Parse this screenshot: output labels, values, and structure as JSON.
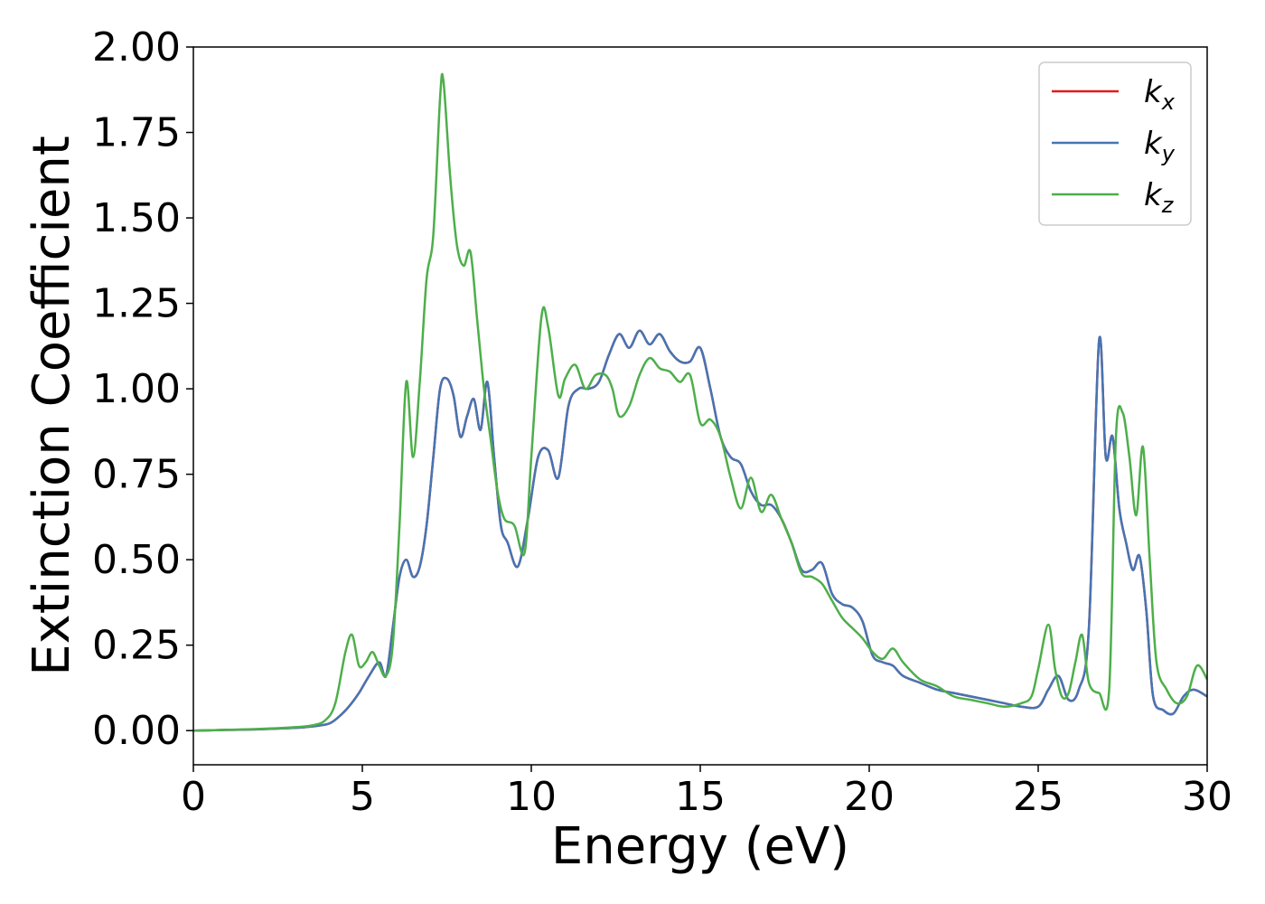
{
  "chart_data": {
    "type": "line",
    "title": "",
    "xlabel": "Energy (eV)",
    "ylabel": "Extinction Coefficient",
    "xlim": [
      0,
      30
    ],
    "ylim": [
      -0.1,
      2.0
    ],
    "xticks": [
      "0",
      "5",
      "10",
      "15",
      "20",
      "25",
      "30"
    ],
    "yticks": [
      "0.00",
      "0.25",
      "0.50",
      "0.75",
      "1.00",
      "1.25",
      "1.50",
      "1.75",
      "2.00"
    ],
    "grid": false,
    "legend_position": "top-right",
    "series": [
      {
        "name": "k_x",
        "legend_base": "k",
        "legend_sub": "x",
        "color": "#e41a1c",
        "x": [
          0,
          1,
          2,
          3,
          3.5,
          4,
          4.3,
          4.6,
          4.9,
          5.2,
          5.5,
          5.7,
          5.9,
          6.1,
          6.3,
          6.5,
          6.7,
          6.9,
          7.1,
          7.3,
          7.5,
          7.7,
          7.9,
          8.1,
          8.3,
          8.5,
          8.7,
          8.9,
          9.1,
          9.3,
          9.6,
          9.9,
          10.2,
          10.5,
          10.8,
          11.1,
          11.4,
          11.7,
          12,
          12.3,
          12.6,
          12.9,
          13.2,
          13.5,
          13.8,
          14.1,
          14.4,
          14.7,
          15,
          15.3,
          15.6,
          15.9,
          16.2,
          16.5,
          16.8,
          17.1,
          17.4,
          17.7,
          18,
          18.3,
          18.6,
          18.9,
          19.2,
          19.5,
          19.8,
          20.1,
          20.4,
          20.7,
          21,
          21.5,
          22,
          22.5,
          23,
          23.5,
          24,
          24.5,
          25,
          25.3,
          25.6,
          25.9,
          26.2,
          26.5,
          26.8,
          27,
          27.2,
          27.4,
          27.6,
          27.8,
          28,
          28.2,
          28.4,
          28.7,
          29,
          29.3,
          29.6,
          30
        ],
        "y": [
          0,
          0.002,
          0.004,
          0.008,
          0.012,
          0.02,
          0.04,
          0.07,
          0.11,
          0.16,
          0.2,
          0.16,
          0.3,
          0.45,
          0.5,
          0.45,
          0.48,
          0.6,
          0.8,
          1.0,
          1.03,
          0.98,
          0.86,
          0.92,
          0.97,
          0.88,
          1.02,
          0.8,
          0.6,
          0.55,
          0.48,
          0.62,
          0.8,
          0.82,
          0.74,
          0.95,
          1.0,
          1.0,
          1.02,
          1.1,
          1.16,
          1.12,
          1.17,
          1.13,
          1.16,
          1.11,
          1.08,
          1.08,
          1.12,
          1.0,
          0.86,
          0.8,
          0.78,
          0.7,
          0.66,
          0.66,
          0.62,
          0.55,
          0.47,
          0.47,
          0.49,
          0.4,
          0.37,
          0.36,
          0.32,
          0.22,
          0.2,
          0.19,
          0.16,
          0.14,
          0.12,
          0.11,
          0.1,
          0.09,
          0.08,
          0.07,
          0.07,
          0.12,
          0.16,
          0.09,
          0.12,
          0.3,
          1.14,
          0.8,
          0.86,
          0.65,
          0.55,
          0.47,
          0.51,
          0.35,
          0.1,
          0.06,
          0.05,
          0.1,
          0.12,
          0.1
        ]
      },
      {
        "name": "k_y",
        "legend_base": "k",
        "legend_sub": "y",
        "color": "#4575b4",
        "x": [
          0,
          1,
          2,
          3,
          3.5,
          4,
          4.3,
          4.6,
          4.9,
          5.2,
          5.5,
          5.7,
          5.9,
          6.1,
          6.3,
          6.5,
          6.7,
          6.9,
          7.1,
          7.3,
          7.5,
          7.7,
          7.9,
          8.1,
          8.3,
          8.5,
          8.7,
          8.9,
          9.1,
          9.3,
          9.6,
          9.9,
          10.2,
          10.5,
          10.8,
          11.1,
          11.4,
          11.7,
          12,
          12.3,
          12.6,
          12.9,
          13.2,
          13.5,
          13.8,
          14.1,
          14.4,
          14.7,
          15,
          15.3,
          15.6,
          15.9,
          16.2,
          16.5,
          16.8,
          17.1,
          17.4,
          17.7,
          18,
          18.3,
          18.6,
          18.9,
          19.2,
          19.5,
          19.8,
          20.1,
          20.4,
          20.7,
          21,
          21.5,
          22,
          22.5,
          23,
          23.5,
          24,
          24.5,
          25,
          25.3,
          25.6,
          25.9,
          26.2,
          26.5,
          26.8,
          27,
          27.2,
          27.4,
          27.6,
          27.8,
          28,
          28.2,
          28.4,
          28.7,
          29,
          29.3,
          29.6,
          30
        ],
        "y": [
          0,
          0.002,
          0.004,
          0.008,
          0.012,
          0.02,
          0.04,
          0.07,
          0.11,
          0.16,
          0.2,
          0.16,
          0.3,
          0.45,
          0.5,
          0.45,
          0.48,
          0.6,
          0.8,
          1.0,
          1.03,
          0.98,
          0.86,
          0.92,
          0.97,
          0.88,
          1.02,
          0.8,
          0.6,
          0.55,
          0.48,
          0.62,
          0.8,
          0.82,
          0.74,
          0.95,
          1.0,
          1.0,
          1.02,
          1.1,
          1.16,
          1.12,
          1.17,
          1.13,
          1.16,
          1.11,
          1.08,
          1.08,
          1.12,
          1.0,
          0.86,
          0.8,
          0.78,
          0.7,
          0.66,
          0.66,
          0.62,
          0.55,
          0.47,
          0.47,
          0.49,
          0.4,
          0.37,
          0.36,
          0.32,
          0.22,
          0.2,
          0.19,
          0.16,
          0.14,
          0.12,
          0.11,
          0.1,
          0.09,
          0.08,
          0.07,
          0.07,
          0.12,
          0.16,
          0.09,
          0.12,
          0.3,
          1.14,
          0.8,
          0.86,
          0.65,
          0.55,
          0.47,
          0.51,
          0.35,
          0.1,
          0.06,
          0.05,
          0.1,
          0.12,
          0.1
        ]
      },
      {
        "name": "k_z",
        "legend_base": "k",
        "legend_sub": "z",
        "color": "#4daf4a",
        "x": [
          0,
          1,
          2,
          3,
          3.5,
          3.9,
          4.2,
          4.5,
          4.7,
          4.9,
          5.1,
          5.3,
          5.5,
          5.7,
          5.9,
          6.1,
          6.3,
          6.5,
          6.7,
          6.9,
          7.1,
          7.3,
          7.4,
          7.6,
          7.8,
          8.0,
          8.2,
          8.4,
          8.6,
          8.8,
          9.0,
          9.2,
          9.5,
          9.8,
          10.0,
          10.3,
          10.5,
          10.8,
          11.0,
          11.3,
          11.6,
          11.9,
          12.2,
          12.4,
          12.6,
          12.9,
          13.2,
          13.5,
          13.8,
          14.1,
          14.4,
          14.7,
          15.0,
          15.3,
          15.6,
          15.9,
          16.2,
          16.5,
          16.8,
          17.1,
          17.4,
          17.7,
          18.0,
          18.3,
          18.6,
          18.9,
          19.2,
          19.5,
          19.8,
          20.1,
          20.4,
          20.7,
          21.0,
          21.5,
          22,
          22.5,
          23,
          23.5,
          24,
          24.5,
          24.8,
          25.0,
          25.3,
          25.5,
          25.7,
          25.9,
          26.1,
          26.3,
          26.5,
          26.8,
          27.1,
          27.3,
          27.5,
          27.7,
          27.9,
          28.1,
          28.3,
          28.5,
          28.8,
          29.1,
          29.4,
          29.7,
          30
        ],
        "y": [
          0,
          0.002,
          0.005,
          0.01,
          0.015,
          0.03,
          0.08,
          0.23,
          0.28,
          0.19,
          0.2,
          0.23,
          0.19,
          0.16,
          0.25,
          0.6,
          1.02,
          0.8,
          1.02,
          1.32,
          1.45,
          1.85,
          1.9,
          1.62,
          1.42,
          1.36,
          1.4,
          1.2,
          1.0,
          0.85,
          0.7,
          0.62,
          0.6,
          0.52,
          0.8,
          1.21,
          1.18,
          0.98,
          1.03,
          1.07,
          1.0,
          1.04,
          1.04,
          1.0,
          0.92,
          0.95,
          1.04,
          1.09,
          1.06,
          1.05,
          1.02,
          1.04,
          0.9,
          0.91,
          0.86,
          0.74,
          0.65,
          0.74,
          0.64,
          0.69,
          0.62,
          0.55,
          0.46,
          0.45,
          0.43,
          0.38,
          0.33,
          0.3,
          0.27,
          0.23,
          0.21,
          0.24,
          0.2,
          0.15,
          0.13,
          0.1,
          0.09,
          0.08,
          0.07,
          0.08,
          0.1,
          0.18,
          0.31,
          0.18,
          0.1,
          0.11,
          0.2,
          0.28,
          0.14,
          0.11,
          0.12,
          0.86,
          0.93,
          0.8,
          0.63,
          0.83,
          0.5,
          0.2,
          0.12,
          0.08,
          0.1,
          0.19,
          0.15
        ]
      }
    ]
  }
}
